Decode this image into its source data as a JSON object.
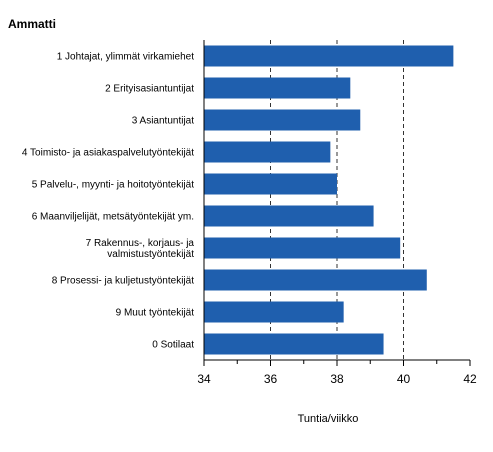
{
  "chart_data": {
    "type": "bar",
    "orientation": "horizontal",
    "title": "Ammatti",
    "xlabel": "Tuntia/viikko",
    "ylabel": "",
    "xlim": [
      34,
      42
    ],
    "xticks": [
      34,
      36,
      38,
      40,
      42
    ],
    "gridlines": [
      36,
      38,
      40
    ],
    "bar_color": "#1f5fae",
    "categories": [
      [
        "1 Johtajat, ylimmät virkamiehet"
      ],
      [
        "2 Erityisasiantuntijat"
      ],
      [
        "3 Asiantuntijat"
      ],
      [
        "4 Toimisto- ja asiakaspalvelutyöntekijät"
      ],
      [
        "5 Palvelu-, myynti- ja hoitotyöntekijät"
      ],
      [
        "6 Maanviljelijät, metsätyöntekijät ym."
      ],
      [
        "7 Rakennus-, korjaus- ja",
        "valmistustyöntekijät"
      ],
      [
        "8 Prosessi- ja kuljetustyöntekijät"
      ],
      [
        "9 Muut työntekijät"
      ],
      [
        "0 Sotilaat"
      ]
    ],
    "values": [
      41.5,
      38.4,
      38.7,
      37.8,
      38.0,
      39.1,
      39.9,
      40.7,
      38.2,
      39.4
    ]
  }
}
